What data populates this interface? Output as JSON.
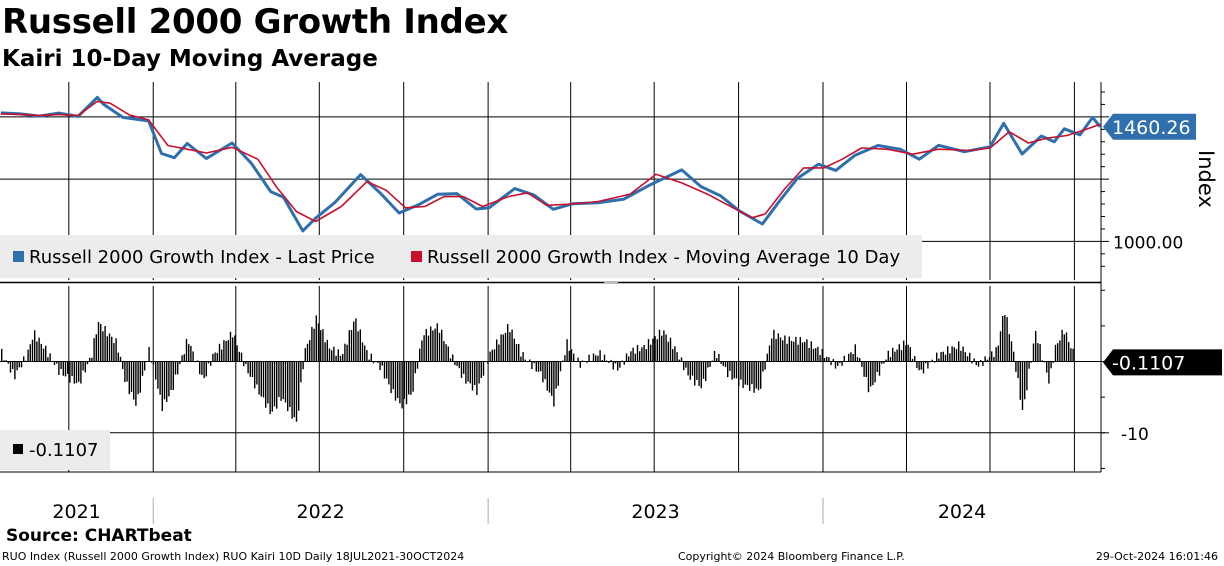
{
  "header": {
    "title": "Russell 2000 Growth Index",
    "subtitle": "Kairi 10-Day Moving Average"
  },
  "footer": {
    "source": "Source: CHARTbeat",
    "description": "RUO Index (Russell 2000 Growth Index) RUO Kairi 10D  Daily 18JUL2021-30OCT2024",
    "copyright": "Copyright© 2024 Bloomberg Finance L.P.",
    "timestamp": "29-Oct-2024 16:01:46"
  },
  "colors": {
    "price": "#2f6fad",
    "moving_average": "#c8102e",
    "kairi": "#000000",
    "last_price_tag": "#2f6fad",
    "kairi_tag": "#000000"
  },
  "chart_data": [
    {
      "type": "line",
      "panel": "upper",
      "title": "Russell 2000 Growth Index",
      "ylabel": "Index",
      "ylim": [
        845,
        1640
      ],
      "y_ticks": [
        {
          "value": 1000,
          "label": "1000.00"
        }
      ],
      "x_range": [
        "2021-07-18",
        "2024-10-30"
      ],
      "last_price_label": "1460.26",
      "legend": "bottom-left",
      "grid": true,
      "series": [
        {
          "name": "Russell 2000 Growth Index - Last Price",
          "key": "price",
          "x": [
            "2021-07-19",
            "2021-08-09",
            "2021-08-30",
            "2021-09-20",
            "2021-10-11",
            "2021-11-01",
            "2021-11-08",
            "2021-11-29",
            "2021-12-27",
            "2022-01-10",
            "2022-01-24",
            "2022-02-07",
            "2022-02-28",
            "2022-03-28",
            "2022-04-18",
            "2022-05-09",
            "2022-05-23",
            "2022-06-13",
            "2022-06-27",
            "2022-07-18",
            "2022-08-15",
            "2022-09-05",
            "2022-09-26",
            "2022-10-17",
            "2022-11-07",
            "2022-11-28",
            "2022-12-19",
            "2023-01-02",
            "2023-01-30",
            "2023-02-20",
            "2023-03-13",
            "2023-04-03",
            "2023-05-01",
            "2023-05-29",
            "2023-06-26",
            "2023-07-31",
            "2023-08-21",
            "2023-09-11",
            "2023-10-02",
            "2023-10-27",
            "2023-11-13",
            "2023-12-04",
            "2023-12-27",
            "2024-01-15",
            "2024-02-05",
            "2024-03-01",
            "2024-03-25",
            "2024-04-15",
            "2024-05-06",
            "2024-06-03",
            "2024-07-01",
            "2024-07-16",
            "2024-08-05",
            "2024-08-26",
            "2024-09-09",
            "2024-09-20",
            "2024-10-07",
            "2024-10-21",
            "2024-10-29"
          ],
          "values": [
            1516,
            1512,
            1503,
            1515,
            1502,
            1578,
            1550,
            1498,
            1484,
            1353,
            1336,
            1393,
            1333,
            1395,
            1313,
            1200,
            1177,
            1042,
            1093,
            1156,
            1268,
            1196,
            1114,
            1147,
            1189,
            1192,
            1130,
            1135,
            1212,
            1186,
            1129,
            1151,
            1155,
            1170,
            1226,
            1287,
            1220,
            1184,
            1122,
            1070,
            1154,
            1253,
            1310,
            1285,
            1346,
            1385,
            1370,
            1330,
            1386,
            1360,
            1380,
            1474,
            1351,
            1423,
            1400,
            1452,
            1428,
            1498,
            1460
          ]
        },
        {
          "name": "Russell 2000 Growth Index - Moving Average 10 Day",
          "key": "moving_average",
          "x": [
            "2021-07-19",
            "2021-08-09",
            "2021-08-30",
            "2021-09-20",
            "2021-10-11",
            "2021-11-01",
            "2021-11-15",
            "2021-12-06",
            "2021-12-27",
            "2022-01-17",
            "2022-02-07",
            "2022-02-28",
            "2022-03-28",
            "2022-04-25",
            "2022-05-16",
            "2022-06-06",
            "2022-06-27",
            "2022-07-25",
            "2022-08-22",
            "2022-09-12",
            "2022-10-03",
            "2022-10-24",
            "2022-11-14",
            "2022-12-05",
            "2022-12-26",
            "2023-01-23",
            "2023-02-13",
            "2023-03-06",
            "2023-04-03",
            "2023-05-01",
            "2023-06-05",
            "2023-07-03",
            "2023-07-31",
            "2023-08-28",
            "2023-09-25",
            "2023-10-16",
            "2023-10-30",
            "2023-11-20",
            "2023-12-11",
            "2024-01-02",
            "2024-01-22",
            "2024-02-12",
            "2024-03-11",
            "2024-04-08",
            "2024-05-06",
            "2024-06-10",
            "2024-07-01",
            "2024-07-22",
            "2024-08-12",
            "2024-09-02",
            "2024-09-23",
            "2024-10-14",
            "2024-10-29"
          ],
          "values": [
            1512,
            1510,
            1505,
            1510,
            1505,
            1562,
            1555,
            1508,
            1488,
            1385,
            1370,
            1355,
            1378,
            1330,
            1215,
            1120,
            1080,
            1140,
            1240,
            1205,
            1135,
            1140,
            1180,
            1180,
            1140,
            1180,
            1195,
            1145,
            1150,
            1160,
            1190,
            1270,
            1235,
            1190,
            1135,
            1095,
            1110,
            1210,
            1295,
            1295,
            1330,
            1375,
            1370,
            1350,
            1370,
            1365,
            1375,
            1440,
            1395,
            1415,
            1425,
            1450,
            1470
          ]
        }
      ]
    },
    {
      "type": "bar",
      "panel": "lower",
      "title": "RUO Kairi 10D",
      "ylim": [
        -15.5,
        10.6
      ],
      "y_ticks": [
        {
          "value": -10,
          "label": "-10"
        }
      ],
      "x_range": [
        "2021-07-18",
        "2024-10-30"
      ],
      "last_value_label": "-0.1107",
      "legend_label": "-0.1107",
      "grid": true,
      "x": [
        "2021-07-19",
        "2021-08-02",
        "2021-08-16",
        "2021-08-23",
        "2021-09-06",
        "2021-09-20",
        "2021-10-11",
        "2021-10-25",
        "2021-11-01",
        "2021-11-22",
        "2021-12-01",
        "2021-12-13",
        "2021-12-27",
        "2022-01-10",
        "2022-01-20",
        "2022-02-07",
        "2022-02-24",
        "2022-03-07",
        "2022-03-28",
        "2022-04-11",
        "2022-04-25",
        "2022-05-09",
        "2022-05-20",
        "2022-06-06",
        "2022-06-14",
        "2022-06-27",
        "2022-07-11",
        "2022-07-25",
        "2022-08-08",
        "2022-08-22",
        "2022-09-06",
        "2022-09-16",
        "2022-09-28",
        "2022-10-10",
        "2022-10-21",
        "2022-11-07",
        "2022-11-21",
        "2022-12-05",
        "2022-12-19",
        "2023-01-03",
        "2023-01-23",
        "2023-02-06",
        "2023-02-27",
        "2023-03-13",
        "2023-03-27",
        "2023-04-10",
        "2023-05-01",
        "2023-05-22",
        "2023-06-05",
        "2023-06-19",
        "2023-07-10",
        "2023-07-24",
        "2023-08-07",
        "2023-08-21",
        "2023-09-05",
        "2023-09-18",
        "2023-10-02",
        "2023-10-23",
        "2023-11-06",
        "2023-11-20",
        "2023-12-11",
        "2023-12-27",
        "2024-01-16",
        "2024-02-05",
        "2024-02-20",
        "2024-03-11",
        "2024-04-01",
        "2024-04-15",
        "2024-05-06",
        "2024-05-28",
        "2024-06-17",
        "2024-07-08",
        "2024-07-16",
        "2024-07-25",
        "2024-08-05",
        "2024-08-19",
        "2024-09-03",
        "2024-09-09",
        "2024-09-19",
        "2024-10-01",
        "2024-10-14",
        "2024-10-29"
      ],
      "values": [
        1.2,
        -2.1,
        1.0,
        4.0,
        1.5,
        -1.4,
        -3.2,
        0.8,
        5.5,
        2.5,
        -2.9,
        -6.1,
        1.7,
        -6.4,
        -4.3,
        3.2,
        -2.7,
        1.0,
        4.0,
        -0.8,
        -4.2,
        -7.3,
        -5.0,
        -8.7,
        1.2,
        6.1,
        2.0,
        0.9,
        6.1,
        1.0,
        -0.9,
        -3.9,
        -6.3,
        -4.3,
        3.8,
        5.0,
        0.8,
        -2.4,
        -4.2,
        1.3,
        5.0,
        1.0,
        -1.8,
        -5.8,
        2.6,
        -0.4,
        1.2,
        -1.1,
        1.5,
        2.0,
        4.3,
        1.6,
        -2.1,
        -3.6,
        1.4,
        -1.6,
        -3.1,
        -4.2,
        4.0,
        3.1,
        2.9,
        1.6,
        -0.8,
        1.9,
        -4.2,
        1.0,
        2.7,
        -1.6,
        1.0,
        2.3,
        -0.6,
        1.6,
        7.4,
        2.0,
        -7.2,
        4.2,
        -3.0,
        1.8,
        4.5,
        0.6,
        2.4,
        -0.11
      ]
    }
  ],
  "x_axis": {
    "years": [
      "2021",
      "2022",
      "2023",
      "2024"
    ],
    "year_start_dates": [
      "2022-01-01",
      "2023-01-01",
      "2024-01-01"
    ]
  }
}
